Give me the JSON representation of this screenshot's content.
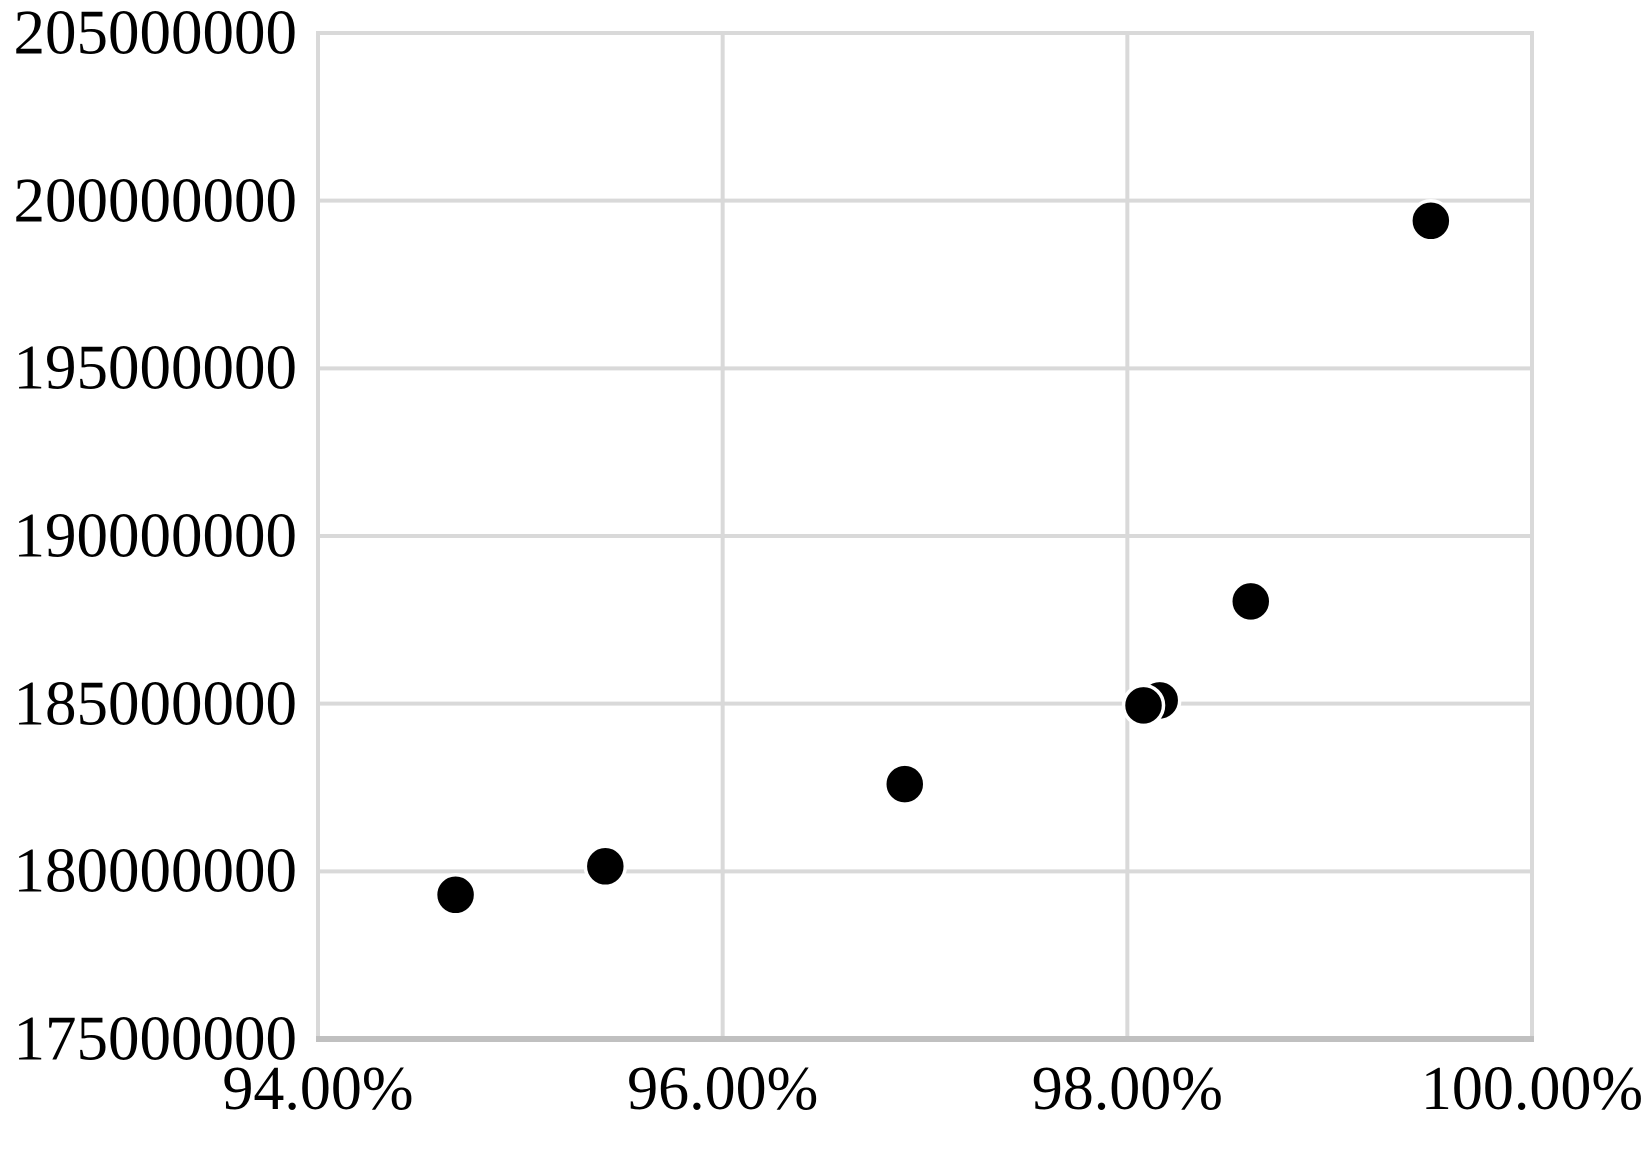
{
  "chart_data": {
    "type": "scatter",
    "title": "",
    "xlabel": "",
    "ylabel": "",
    "xlim": [
      94,
      100
    ],
    "ylim": [
      175000000,
      205000000
    ],
    "grid": true,
    "legend_position": "none",
    "x_ticks": [
      {
        "label": "94.00%",
        "value": 94
      },
      {
        "label": "96.00%",
        "value": 96
      },
      {
        "label": "98.00%",
        "value": 98
      },
      {
        "label": "100.00%",
        "value": 100
      }
    ],
    "y_ticks": [
      {
        "label": "205000000",
        "value": 205000000
      },
      {
        "label": "200000000",
        "value": 200000000
      },
      {
        "label": "195000000",
        "value": 195000000
      },
      {
        "label": "190000000",
        "value": 190000000
      },
      {
        "label": "185000000",
        "value": 185000000
      },
      {
        "label": "180000000",
        "value": 180000000
      },
      {
        "label": "175000000",
        "value": 175000000
      }
    ],
    "points": [
      {
        "x": 94.68,
        "y": 179300000
      },
      {
        "x": 95.42,
        "y": 180150000
      },
      {
        "x": 96.9,
        "y": 182600000
      },
      {
        "x": 98.16,
        "y": 185100000
      },
      {
        "x": 98.08,
        "y": 184950000
      },
      {
        "x": 98.61,
        "y": 188050000
      },
      {
        "x": 99.5,
        "y": 199400000
      }
    ],
    "marker": {
      "fill": "#000000",
      "stroke": "#ffffff",
      "stroke_width": 3.5,
      "radius_px": 20
    },
    "colors": {
      "background": "#ffffff",
      "gridline": "#d9d9d9",
      "plot_border": "#d9d9d9",
      "axis_line": "#c0c0c0",
      "text": "#000000"
    }
  }
}
